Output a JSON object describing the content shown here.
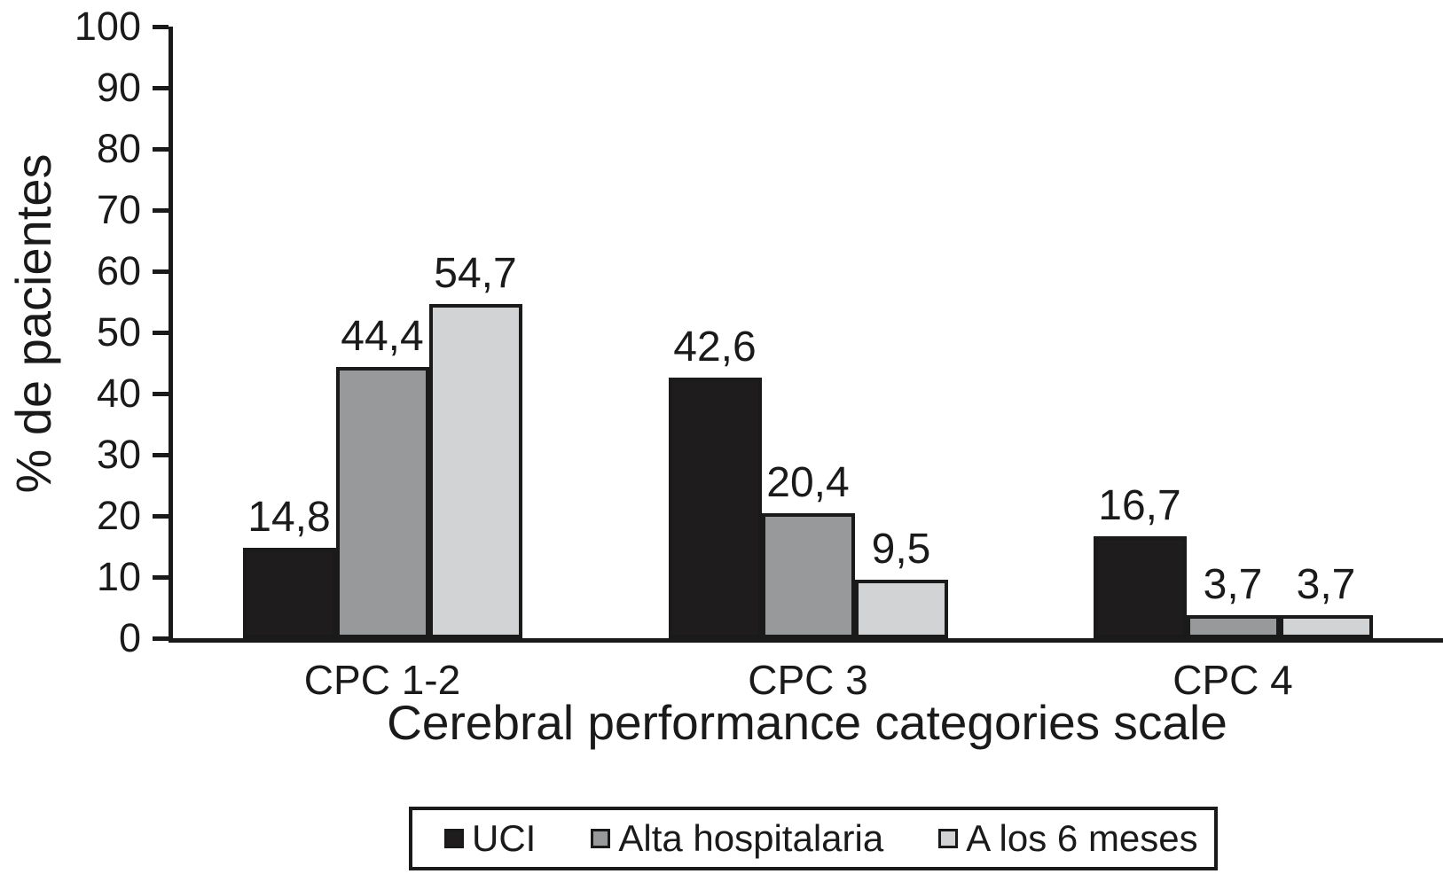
{
  "chart_data": {
    "type": "bar",
    "categories": [
      "CPC 1-2",
      "CPC 3",
      "CPC 4"
    ],
    "series": [
      {
        "name": "UCI",
        "values": [
          14.8,
          42.6,
          16.7
        ],
        "labels": [
          "14,8",
          "42,6",
          "16,7"
        ],
        "color": "#1e1c1c"
      },
      {
        "name": "Alta hospitalaria",
        "values": [
          44.4,
          20.4,
          3.7
        ],
        "labels": [
          "44,4",
          "20,4",
          "3,7"
        ],
        "color": "#97999b"
      },
      {
        "name": "A los 6 meses",
        "values": [
          54.7,
          9.5,
          3.7
        ],
        "labels": [
          "54,7",
          "9,5",
          "3,7"
        ],
        "color": "#d2d3d5"
      }
    ],
    "xlabel": "Cerebral performance categories scale",
    "ylabel": "% de pacientes",
    "ylim": [
      0,
      100
    ],
    "yticks": [
      0,
      10,
      20,
      30,
      40,
      50,
      60,
      70,
      80,
      90,
      100
    ],
    "grid": false,
    "legend_position": "bottom",
    "decimal_separator": ",",
    "axis_color": "#1a1a1a",
    "bar_border_color": "#1a1a1a",
    "background_color": "#ffffff"
  }
}
